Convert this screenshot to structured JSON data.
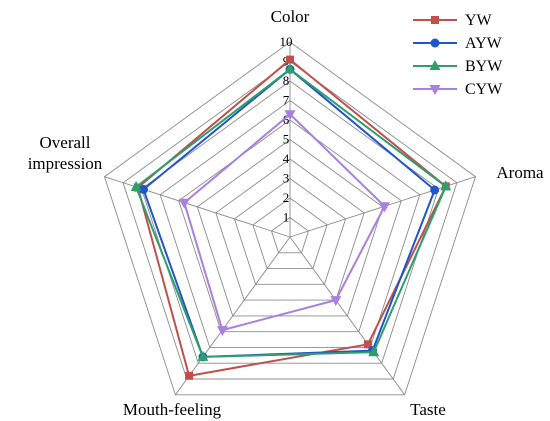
{
  "chart_data": {
    "type": "radar",
    "axes": [
      "Color",
      "Aroma",
      "Taste",
      "Mouth-feeling",
      "Overall\nimpression"
    ],
    "rlim": [
      0,
      10
    ],
    "ticks": [
      1,
      2,
      3,
      4,
      5,
      6,
      7,
      8,
      9,
      10
    ],
    "grid": true,
    "legend_position": "top-right",
    "series": [
      {
        "name": "YW",
        "color": "#c0504d",
        "marker": "square",
        "values": [
          9.1,
          8.4,
          6.8,
          8.8,
          8.2
        ]
      },
      {
        "name": "AYW",
        "color": "#2255cc",
        "marker": "circle",
        "values": [
          8.6,
          7.8,
          7.2,
          7.6,
          7.9
        ]
      },
      {
        "name": "BYW",
        "color": "#2e9e6b",
        "marker": "triangle",
        "values": [
          8.6,
          8.4,
          7.3,
          7.6,
          8.3
        ]
      },
      {
        "name": "CYW",
        "color": "#a97fe0",
        "marker": "triangle-down",
        "values": [
          6.3,
          5.1,
          4.0,
          5.9,
          5.7
        ]
      }
    ]
  }
}
